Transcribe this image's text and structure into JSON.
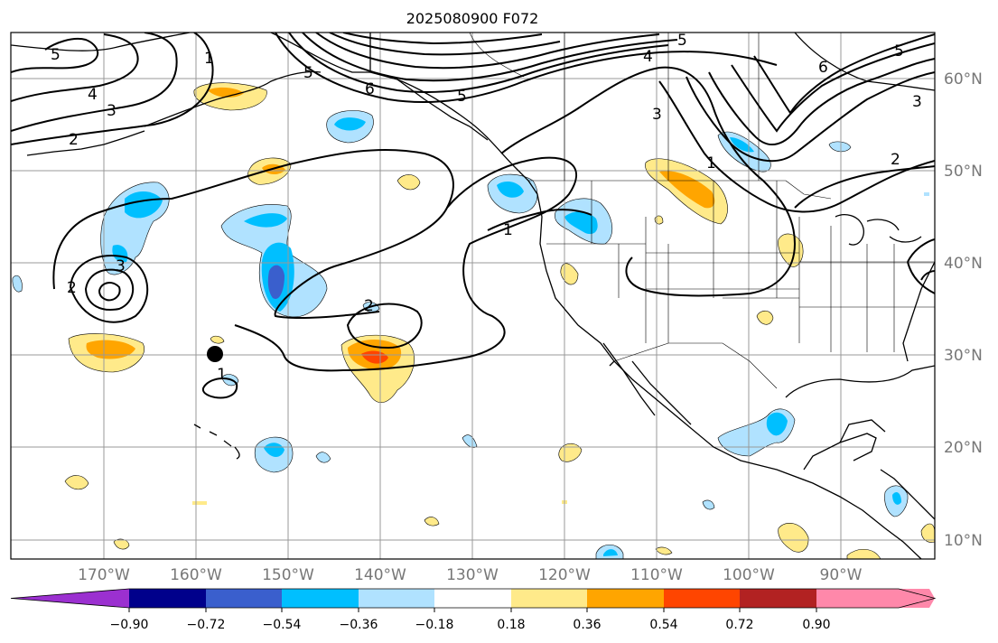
{
  "title": "2025080900 F072",
  "lat_ticks": [
    "60°N",
    "50°N",
    "40°N",
    "30°N",
    "20°N",
    "10°N"
  ],
  "lon_ticks": [
    "170°W",
    "160°W",
    "150°W",
    "140°W",
    "130°W",
    "120°W",
    "110°W",
    "100°W",
    "90°W"
  ],
  "colorbar": {
    "tick_labels": [
      "−0.90",
      "−0.72",
      "−0.54",
      "−0.36",
      "−0.18",
      "0.18",
      "0.36",
      "0.54",
      "0.72",
      "0.90"
    ],
    "colors": [
      "#9b30d0",
      "#00008b",
      "#3a5fcd",
      "#00bfff",
      "#b0e2ff",
      "#ffffff",
      "#ffea8a",
      "#ffa500",
      "#ff4500",
      "#b22222",
      "#ff88aa"
    ]
  },
  "contour_labels": [
    "5",
    "4",
    "3",
    "2",
    "1",
    "5",
    "6",
    "5",
    "5",
    "4",
    "3",
    "5",
    "6",
    "2",
    "1",
    "2",
    "3",
    "2",
    "2",
    "1"
  ],
  "marker": "black-dot"
}
